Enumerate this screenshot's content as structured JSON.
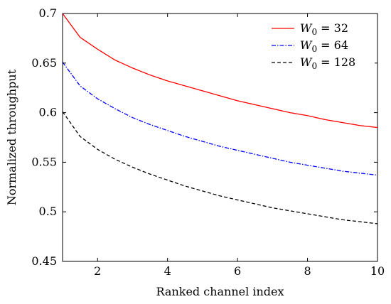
{
  "chart_data": {
    "type": "line",
    "title": "",
    "xlabel": "Ranked channel index",
    "ylabel": "Normalized throughput",
    "xlim": [
      1,
      10
    ],
    "ylim": [
      0.45,
      0.7
    ],
    "xticks": [
      2,
      4,
      6,
      8,
      10
    ],
    "yticks": [
      0.45,
      0.5,
      0.55,
      0.6,
      0.65,
      0.7
    ],
    "xtick_labels": [
      "2",
      "4",
      "6",
      "8",
      "10"
    ],
    "ytick_labels": [
      "0.45",
      "0.5",
      "0.55",
      "0.6",
      "0.65",
      "0.7"
    ],
    "grid": false,
    "legend_position": "top-right",
    "x": [
      1,
      1.5,
      2,
      2.5,
      3,
      3.5,
      4,
      4.5,
      5,
      5.5,
      6,
      6.5,
      7,
      7.5,
      8,
      8.5,
      9,
      9.5,
      10
    ],
    "series": [
      {
        "name_prefix": "W",
        "name_sub": "0",
        "name_rest": " = 32",
        "color": "#ff0000",
        "dash": "",
        "values": [
          0.7,
          0.676,
          0.664,
          0.653,
          0.645,
          0.638,
          0.632,
          0.627,
          0.622,
          0.617,
          0.612,
          0.608,
          0.604,
          0.6,
          0.597,
          0.593,
          0.59,
          0.587,
          0.585
        ]
      },
      {
        "name_prefix": "W",
        "name_sub": "0",
        "name_rest": " = 64",
        "color": "#0000ff",
        "dash": "6,2,1.5,2",
        "values": [
          0.651,
          0.627,
          0.614,
          0.604,
          0.595,
          0.588,
          0.582,
          0.576,
          0.571,
          0.566,
          0.562,
          0.558,
          0.554,
          0.55,
          0.547,
          0.544,
          0.541,
          0.539,
          0.537
        ]
      },
      {
        "name_prefix": "W",
        "name_sub": "0",
        "name_rest": " = 128",
        "color": "#000000",
        "dash": "5,3",
        "values": [
          0.601,
          0.576,
          0.563,
          0.553,
          0.545,
          0.538,
          0.532,
          0.526,
          0.521,
          0.516,
          0.512,
          0.508,
          0.504,
          0.501,
          0.498,
          0.495,
          0.492,
          0.49,
          0.488
        ]
      }
    ]
  }
}
